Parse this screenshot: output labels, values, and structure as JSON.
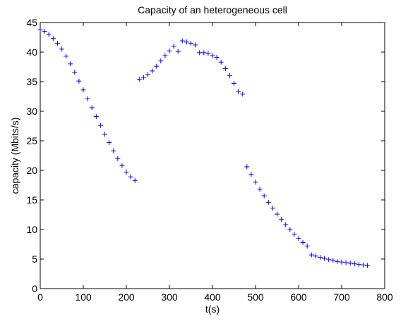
{
  "chart_data": {
    "type": "scatter",
    "title": "Capacity of an heterogeneous cell",
    "xlabel": "t(s)",
    "ylabel": "capacity (Mbits/s)",
    "xlim": [
      0,
      800
    ],
    "ylim": [
      0,
      45
    ],
    "xticks": [
      0,
      100,
      200,
      300,
      400,
      500,
      600,
      700,
      800
    ],
    "yticks": [
      0,
      5,
      10,
      15,
      20,
      25,
      30,
      35,
      40,
      45
    ],
    "grid": false,
    "marker": "+",
    "marker_color": "#0000ff",
    "series": [
      {
        "x": [
          0,
          10,
          20,
          30,
          40,
          50,
          60,
          70,
          80,
          90,
          100,
          110,
          120,
          130,
          140,
          150,
          160,
          170,
          180,
          190,
          200,
          210,
          220,
          230,
          240,
          250,
          260,
          270,
          280,
          290,
          300,
          310,
          320,
          330,
          340,
          350,
          360,
          370,
          380,
          390,
          400,
          410,
          420,
          430,
          440,
          450,
          460,
          470,
          480,
          490,
          500,
          510,
          520,
          530,
          540,
          550,
          560,
          570,
          580,
          590,
          600,
          610,
          620,
          630,
          640,
          650,
          660,
          670,
          680,
          690,
          700,
          710,
          720,
          730,
          740,
          750,
          760
        ],
        "y": [
          43.8,
          43.5,
          43.0,
          42.3,
          41.5,
          40.5,
          39.3,
          38.0,
          36.6,
          35.1,
          33.6,
          32.1,
          30.6,
          29.1,
          27.6,
          26.1,
          24.7,
          23.3,
          22.0,
          20.8,
          19.7,
          18.9,
          18.3,
          35.4,
          35.7,
          36.2,
          36.8,
          37.6,
          38.5,
          39.4,
          40.2,
          41.0,
          40.1,
          41.9,
          41.7,
          41.5,
          41.2,
          39.9,
          39.9,
          39.8,
          39.4,
          39.1,
          38.3,
          37.2,
          36.0,
          34.7,
          33.3,
          32.9,
          20.6,
          19.3,
          18.0,
          16.8,
          15.7,
          14.6,
          13.6,
          12.6,
          11.7,
          10.8,
          10.0,
          9.2,
          8.5,
          7.8,
          7.2,
          5.7,
          5.5,
          5.3,
          5.1,
          4.9,
          4.8,
          4.6,
          4.5,
          4.4,
          4.3,
          4.2,
          4.1,
          4.0,
          3.9
        ]
      }
    ]
  }
}
